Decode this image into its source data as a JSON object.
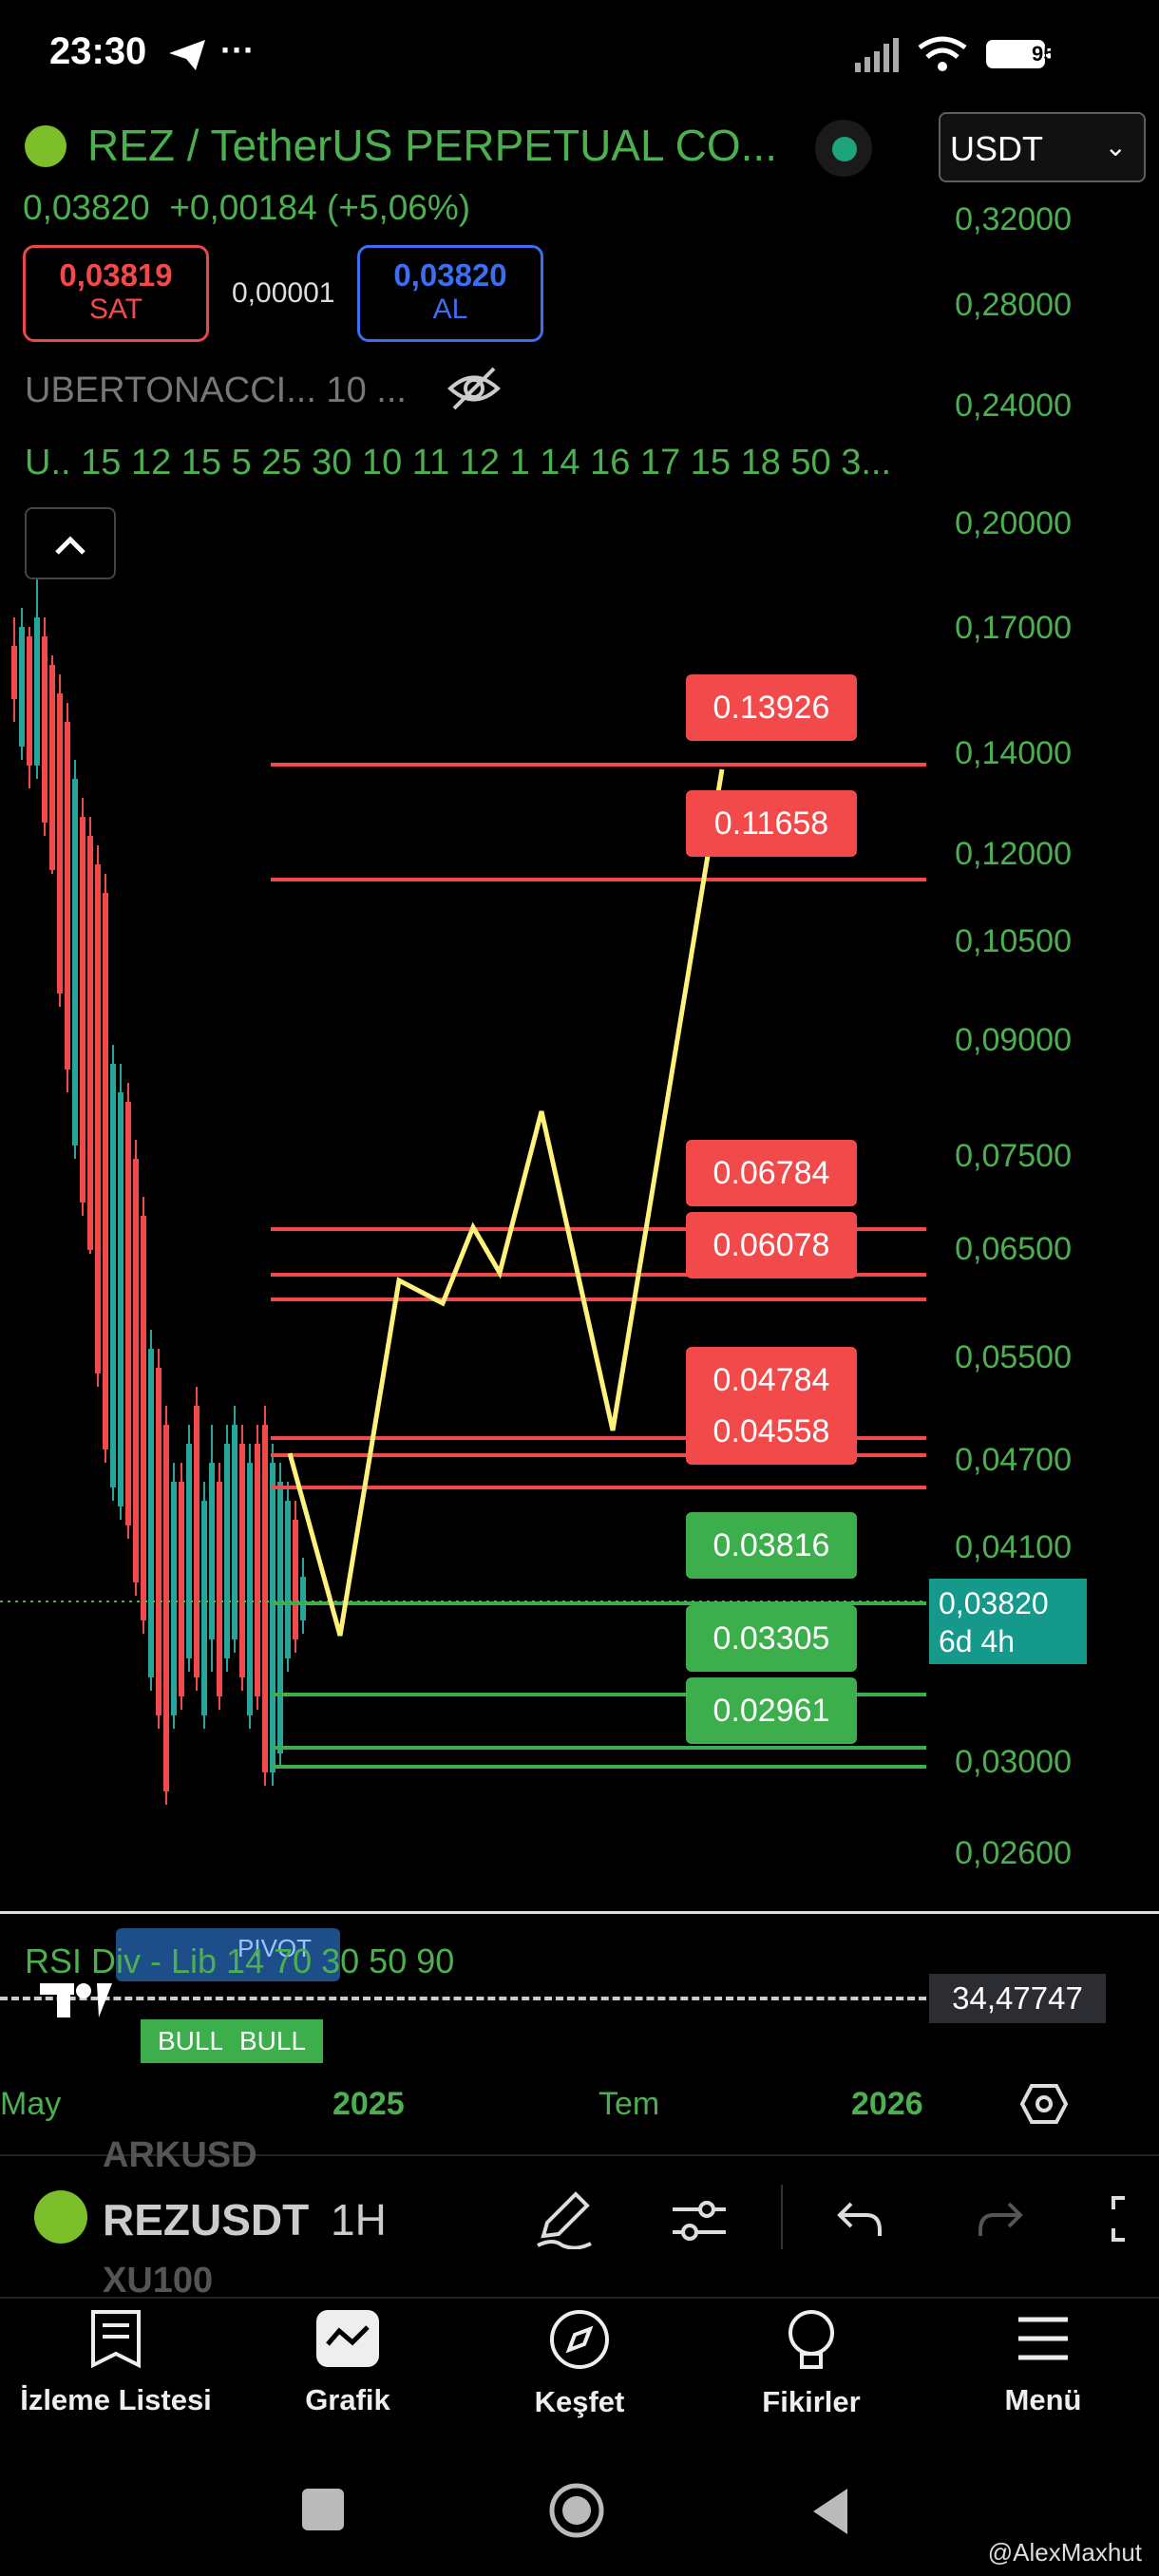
{
  "status": {
    "time": "23:30",
    "battery": "95"
  },
  "header": {
    "title": "REZ / TetherUS PERPETUAL CO...",
    "price": "0,03820",
    "change": "+0,00184 (+5,06%)",
    "currency": "USDT",
    "sell_price": "0,03819",
    "sell_label": "SAT",
    "spread": "0,00001",
    "buy_price": "0,03820",
    "buy_label": "AL",
    "indicator_name": "UBERTONACCI... 10 ...",
    "indicator_values": "U.. 15 12 15 5 25 30 10 11 12 1 14 16 17 15 18 50 3..."
  },
  "price_axis": [
    {
      "label": "0,32000"
    },
    {
      "label": "0,28000"
    },
    {
      "label": "0,24000"
    },
    {
      "label": "0,20000"
    },
    {
      "label": "0,17000"
    },
    {
      "label": "0,14000"
    },
    {
      "label": "0,12000"
    },
    {
      "label": "0,10500"
    },
    {
      "label": "0,09000"
    },
    {
      "label": "0,07500"
    },
    {
      "label": "0,06500"
    },
    {
      "label": "0,05500"
    },
    {
      "label": "0,04700"
    },
    {
      "label": "0,04100"
    },
    {
      "label": "0,03000"
    },
    {
      "label": "0,02600"
    }
  ],
  "level_tags": [
    {
      "value": "0.13926",
      "color": "red"
    },
    {
      "value": "0.11658",
      "color": "red"
    },
    {
      "value": "0.06784",
      "color": "red"
    },
    {
      "value": "0.06078",
      "color": "red"
    },
    {
      "value": "0.04784",
      "color": "red"
    },
    {
      "value": "0.04558",
      "color": "red"
    },
    {
      "value": "0.03816",
      "color": "green"
    },
    {
      "value": "0.03305",
      "color": "green"
    },
    {
      "value": "0.02961",
      "color": "green"
    }
  ],
  "current_price_tag": {
    "price": "0,03820",
    "countdown": "6d 4h"
  },
  "rsi": {
    "label": "RSI Div - Lib 14 70 30 50 90",
    "value": "34,47747",
    "pivot_text": "PIVOT",
    "bull1": "BULL",
    "bull2": "BULL"
  },
  "time_axis": {
    "t1": "May",
    "t2": "2025",
    "t3": "Tem",
    "t4": "2026"
  },
  "toolbar": {
    "symbol": "REZUSDT",
    "timeframe": "1H",
    "ghost_above": "ARKUSD",
    "ghost_below": "XU100"
  },
  "nav": {
    "watchlist": "İzleme Listesi",
    "chart": "Grafik",
    "explore": "Keşfet",
    "ideas": "Fikirler",
    "menu": "Menü"
  },
  "watermark": "@AlexMaxhut",
  "colors": {
    "bull": "#4caf50",
    "bear": "#f24a4a",
    "projection": "#fff27a",
    "accent": "#14998a"
  }
}
